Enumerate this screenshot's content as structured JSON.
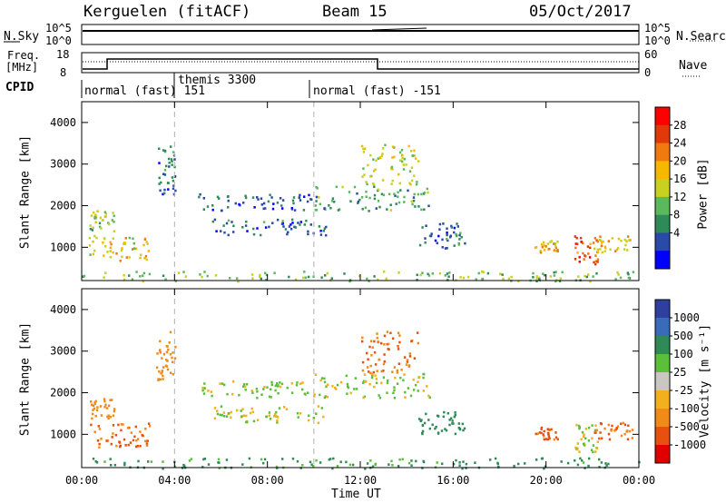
{
  "header": {
    "radar": "Kerguelen (fitACF)",
    "beam": "Beam 15",
    "date": "05/Oct/2017"
  },
  "top_panels": {
    "nsky_label": "N.Sky",
    "nsearch_label": "N.Search",
    "nsky_ticks": [
      "10^5",
      "10^0"
    ],
    "freq_label_1": "Freq.",
    "freq_label_2": "[MHz]",
    "freq_ticks": [
      "18",
      "8"
    ],
    "nave_label": "Nave",
    "nave_ticks": [
      "60",
      "0"
    ],
    "cpid_label": "CPID"
  },
  "cpid_segments": [
    {
      "label": "normal (fast) 151",
      "start_hour": 0
    },
    {
      "label": "themis 3300",
      "start_hour": 4
    },
    {
      "label": "normal (fast) -151",
      "start_hour": 10
    }
  ],
  "power_colorbar": {
    "label": "Power [dB]",
    "ticks": [
      "28",
      "24",
      "20",
      "16",
      "12",
      "8",
      "4"
    ],
    "colors": [
      "#ff0000",
      "#e03a0a",
      "#f07a10",
      "#f5b800",
      "#c8d020",
      "#5cb85c",
      "#2e8b57",
      "#2a4aa8",
      "#0000ff"
    ]
  },
  "velocity_colorbar": {
    "label": "Velocity [m s⁻¹]",
    "ticks": [
      "1000",
      "500",
      "100",
      "25",
      "-25",
      "-100",
      "-500",
      "-1000"
    ],
    "colors": [
      "#2f3f9f",
      "#3a6bb8",
      "#2e8b57",
      "#5cbf3a",
      "#c8c8c0",
      "#f2b01e",
      "#f08a18",
      "#e85010",
      "#e00000"
    ]
  },
  "chart_data": {
    "type": "heatmap",
    "xlabel": "Time UT",
    "ylabel": "Slant Range [km]",
    "xlim_hours": [
      0,
      24
    ],
    "ylim_km": [
      200,
      4500
    ],
    "x_ticks": [
      "00:00",
      "04:00",
      "08:00",
      "12:00",
      "16:00",
      "20:00",
      "00:00"
    ],
    "y_ticks": [
      1000,
      2000,
      3000,
      4000
    ],
    "dashed_time_markers_hours": [
      4,
      10
    ],
    "panels": [
      "power",
      "velocity"
    ],
    "echo_regions": [
      {
        "t0": 0.3,
        "t1": 3.0,
        "r0": 700,
        "r1": 1300,
        "power": 18,
        "velocity": -300
      },
      {
        "t0": 0.3,
        "t1": 1.4,
        "r0": 1400,
        "r1": 1900,
        "power": 14,
        "velocity": -200
      },
      {
        "t0": 3.2,
        "t1": 4.0,
        "r0": 2300,
        "r1": 3500,
        "power": 6,
        "velocity": -150
      },
      {
        "t0": 5.0,
        "t1": 10.0,
        "r0": 1900,
        "r1": 2300,
        "power": 5,
        "velocity": 10
      },
      {
        "t0": 5.5,
        "t1": 10.5,
        "r0": 1300,
        "r1": 1700,
        "power": 6,
        "velocity": 0
      },
      {
        "t0": 10.0,
        "t1": 15.0,
        "r0": 1900,
        "r1": 2500,
        "power": 10,
        "velocity": 5
      },
      {
        "t0": 12.0,
        "t1": 14.5,
        "r0": 2500,
        "r1": 3500,
        "power": 16,
        "velocity": -300
      },
      {
        "t0": 14.5,
        "t1": 16.5,
        "r0": 1000,
        "r1": 1600,
        "power": 6,
        "velocity": 150
      },
      {
        "t0": 19.5,
        "t1": 20.5,
        "r0": 900,
        "r1": 1200,
        "power": 20,
        "velocity": -400
      },
      {
        "t0": 21.2,
        "t1": 22.2,
        "r0": 600,
        "r1": 1300,
        "power": 26,
        "velocity": 0
      },
      {
        "t0": 22.0,
        "t1": 23.7,
        "r0": 900,
        "r1": 1300,
        "power": 20,
        "velocity": -300
      },
      {
        "t0": 0.0,
        "t1": 24.0,
        "r0": 200,
        "r1": 450,
        "power": 12,
        "velocity": 80
      }
    ]
  }
}
